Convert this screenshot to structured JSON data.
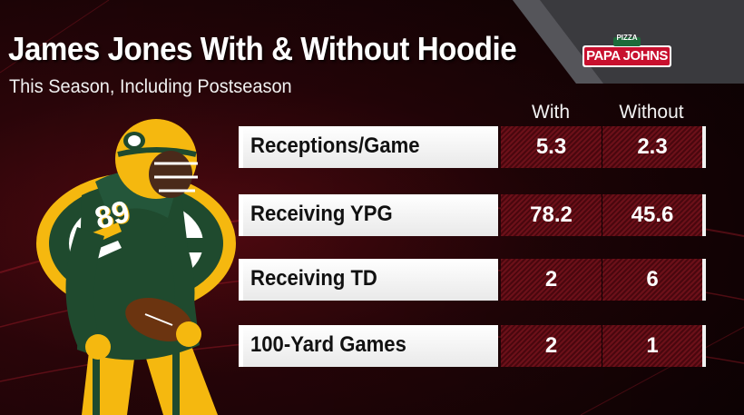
{
  "graphic": {
    "title": "James Jones With & Without Hoodie",
    "subtitle": "This Season, Including Postseason",
    "sponsor": {
      "top": "PIZZA",
      "name": "PAPA JOHNS"
    },
    "columns": {
      "with": "With",
      "without": "Without"
    },
    "rows": [
      {
        "label": "Receptions/Game",
        "with": "5.3",
        "without": "2.3"
      },
      {
        "label": "Receiving YPG",
        "with": "78.2",
        "without": "45.6"
      },
      {
        "label": "Receiving TD",
        "with": "2",
        "without": "6"
      },
      {
        "label": "100-Yard Games",
        "with": "2",
        "without": "1"
      }
    ],
    "player_jersey_number": "89"
  },
  "colors": {
    "background": "#2a0509",
    "stat_cell": "#6c1019",
    "label_box": "#ffffff",
    "packers_green": "#1f4a2e",
    "packers_gold": "#f5b80f",
    "sponsor_red": "#c8102e"
  },
  "icons": {
    "team_logo": "packers-g-logo-icon",
    "sponsor_logo": "papa-johns-logo-icon"
  }
}
